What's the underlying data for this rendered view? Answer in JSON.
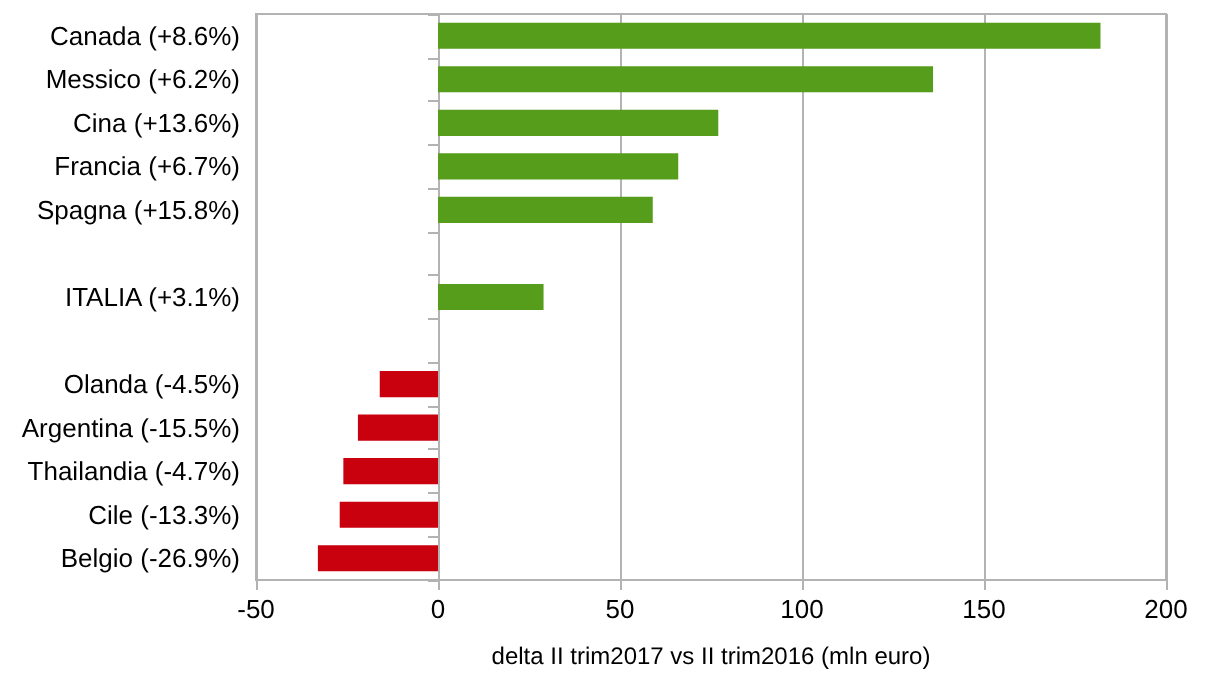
{
  "chart_data": {
    "type": "bar",
    "orientation": "horizontal",
    "xlabel": "delta II trim2017 vs II trim2016 (mln euro)",
    "categories": [
      "Canada (+8.6%)",
      "Messico (+6.2%)",
      "Cina (+13.6%)",
      "Francia (+6.7%)",
      "Spagna (+15.8%)",
      null,
      "ITALIA (+3.1%)",
      null,
      "Olanda (-4.5%)",
      "Argentina (-15.5%)",
      "Thailandia (-4.7%)",
      "Cile (-13.3%)",
      "Belgio (-26.9%)"
    ],
    "values": [
      182,
      136,
      77,
      66,
      59,
      null,
      29,
      null,
      -16,
      -22,
      -26,
      -27,
      -33
    ],
    "colors": [
      "#579d1c",
      "#579d1c",
      "#579d1c",
      "#579d1c",
      "#579d1c",
      null,
      "#579d1c",
      null,
      "#c9000e",
      "#c9000e",
      "#c9000e",
      "#c9000e",
      "#c9000e"
    ],
    "xlim": [
      -50,
      200
    ],
    "xticks": [
      -50,
      0,
      50,
      100,
      150,
      200
    ],
    "grid": "x"
  }
}
